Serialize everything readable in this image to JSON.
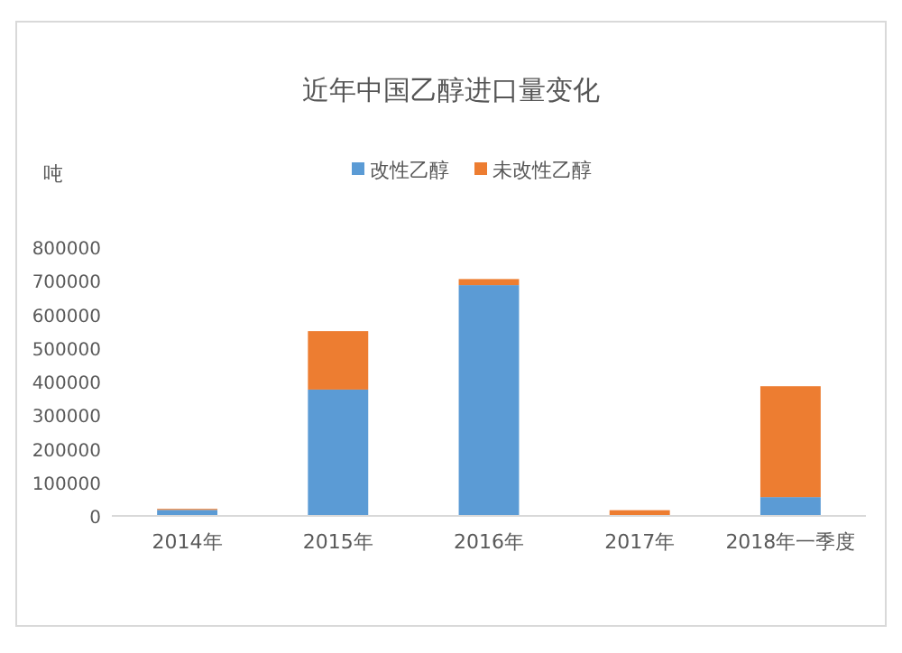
{
  "chart_data": {
    "type": "bar",
    "stacked": true,
    "title": "近年中国乙醇进口量变化",
    "ylabel": "吨",
    "legend": "top",
    "grid": false,
    "categories": [
      "2014年",
      "2015年",
      "2016年",
      "2017年",
      "2018年一季度"
    ],
    "series": [
      {
        "name": "改性乙醇",
        "color": "#5b9bd5",
        "values": [
          18000,
          376000,
          687000,
          2000,
          56000
        ]
      },
      {
        "name": "未改性乙醇",
        "color": "#ed7d31",
        "values": [
          3000,
          174000,
          18000,
          15000,
          330000
        ]
      }
    ],
    "ylim": [
      0,
      800000
    ],
    "yticks": [
      0,
      100000,
      200000,
      300000,
      400000,
      500000,
      600000,
      700000,
      800000
    ]
  }
}
